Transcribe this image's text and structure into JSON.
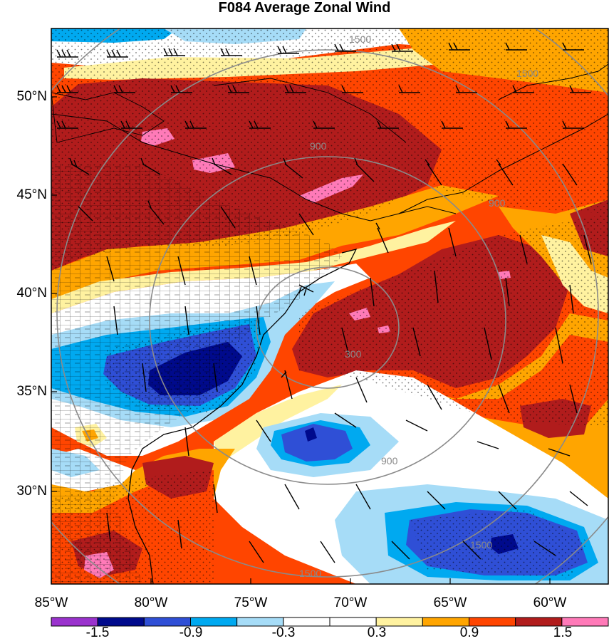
{
  "title": "F084 Average Zonal Wind",
  "lat_labels": [
    "50°N",
    "45°N",
    "40°N",
    "35°N",
    "30°N"
  ],
  "lon_labels": [
    "85°W",
    "80°W",
    "75°W",
    "70°W",
    "65°W",
    "60°W"
  ],
  "contour_labels": [
    "1500",
    "1500",
    "900",
    "900",
    "300",
    "900",
    "1500",
    "1500"
  ],
  "colorbar": {
    "labels": [
      "-1.5",
      "-0.9",
      "-0.3",
      "0.3",
      "0.9",
      "1.5"
    ],
    "colors": [
      "#9a32cd",
      "#000a8c",
      "#2f4fd6",
      "#00a9f0",
      "#a6dcf7",
      "#ffffff",
      "#ffffff",
      "#fff2a0",
      "#ffa500",
      "#ff4500",
      "#b11c1c",
      "#ff7ab8"
    ]
  },
  "field_colors": {
    "deep_red": "#b11c1c",
    "red": "#ff4500",
    "orange": "#ffa500",
    "yellow": "#fff2a0",
    "white": "#ffffff",
    "light_blue": "#a6dcf7",
    "blue": "#00a9f0",
    "royal_blue": "#2f4fd6",
    "navy": "#000a8c",
    "pink": "#ff7ab8",
    "contour": "#8a8a8a"
  }
}
